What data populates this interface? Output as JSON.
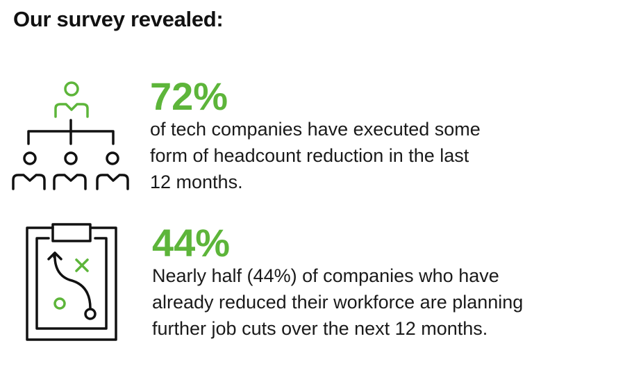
{
  "title": "Our survey revealed:",
  "accent_color": "#5db53a",
  "stats": [
    {
      "icon": "org-chart-icon",
      "percent": "72%",
      "lines": [
        "of tech companies have executed some",
        "form of headcount reduction in the last",
        "12 months."
      ]
    },
    {
      "icon": "strategy-clipboard-icon",
      "percent": "44%",
      "lines": [
        "Nearly half (44%) of companies who have",
        "already reduced their workforce are planning",
        "further job cuts over the next 12 months."
      ]
    }
  ]
}
